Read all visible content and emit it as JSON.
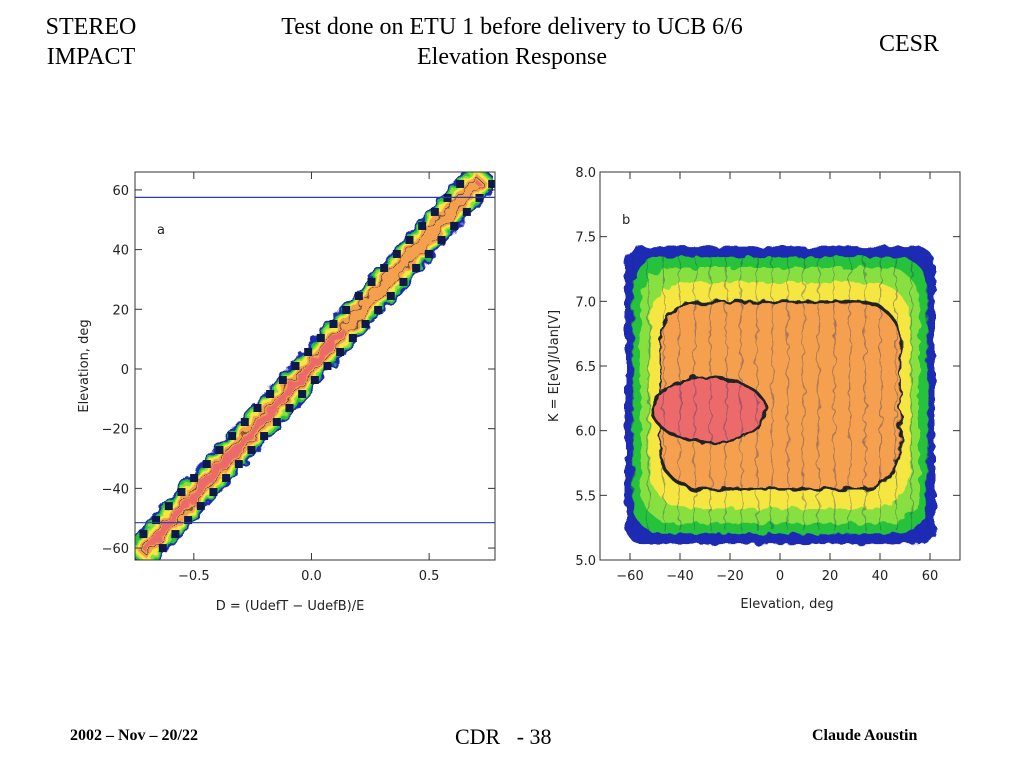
{
  "header": {
    "left_line1": "STEREO",
    "left_line2": "IMPACT",
    "title_line1": "Test done on ETU 1 before delivery to UCB 6/6",
    "title_line2": "Elevation Response",
    "right": "CESR"
  },
  "footer": {
    "date": "2002 – Nov – 20/22",
    "page": "CDR   - 38",
    "author": "Claude Aoustin"
  },
  "colors": {
    "red": "#ec6b6b",
    "orange": "#f4a050",
    "yellow": "#f6e642",
    "green": "#27c23a",
    "lightgreen": "#88e040",
    "blue": "#1c2cb4",
    "refline": "#2a3ab0"
  },
  "chart_data": [
    {
      "type": "heatmap",
      "panel_label": "a",
      "xlabel": "D = (UdefT − UdefB)/E",
      "ylabel": "Elevation, deg",
      "xlim": [
        -0.75,
        0.78
      ],
      "ylim": [
        -64,
        66
      ],
      "xticks": [
        "−0.5",
        "0.0",
        "0.5"
      ],
      "xtick_values": [
        -0.5,
        0.0,
        0.5
      ],
      "yticks": [
        "60",
        "40",
        "20",
        "0",
        "−20",
        "−40",
        "−60"
      ],
      "ytick_values": [
        60,
        40,
        20,
        0,
        -20,
        -40,
        -60
      ],
      "reference_lines_y": [
        57.5,
        -51.5
      ],
      "ridge": {
        "x_start": -0.7,
        "y_start": -60,
        "x_end": 0.7,
        "y_end": 62
      }
    },
    {
      "type": "heatmap",
      "panel_label": "b",
      "xlabel": "Elevation, deg",
      "ylabel": "K = E[eV]/Uan[V]",
      "xlim": [
        -72,
        72
      ],
      "ylim": [
        5.0,
        8.0
      ],
      "xticks": [
        "−60",
        "−40",
        "−20",
        "0",
        "20",
        "40",
        "60"
      ],
      "xtick_values": [
        -60,
        -40,
        -20,
        0,
        20,
        40,
        60
      ],
      "yticks": [
        "8.0",
        "7.5",
        "7.0",
        "6.5",
        "6.0",
        "5.5",
        "5.0"
      ],
      "ytick_values": [
        8.0,
        7.5,
        7.0,
        6.5,
        6.0,
        5.5,
        5.0
      ],
      "response_region": {
        "x_range": [
          -62,
          62
        ],
        "y_range": [
          5.2,
          7.5
        ],
        "peak": [
          -30,
          6.1
        ]
      }
    }
  ]
}
